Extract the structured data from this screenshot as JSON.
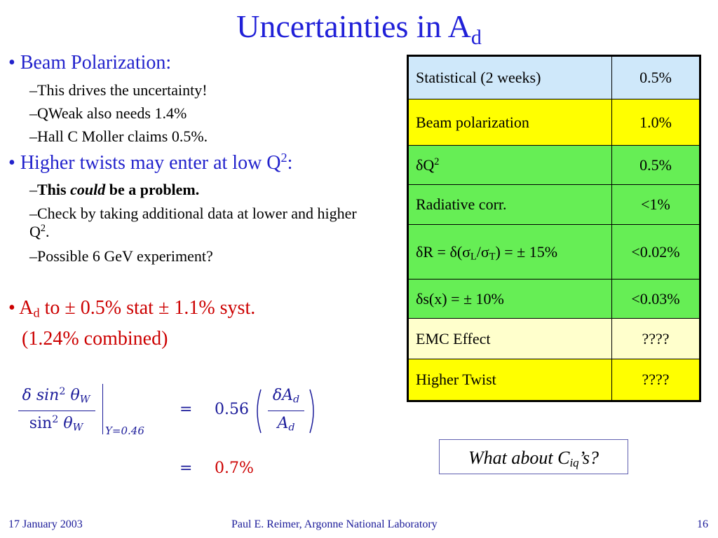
{
  "title": {
    "main": "Uncertainties in A",
    "sub": "d"
  },
  "bullets": {
    "beam": {
      "bullet": "•",
      "label": "Beam Polarization:",
      "items": [
        "–This drives the uncertainty!",
        "–QWeak also needs 1.4%",
        "–Hall C Moller claims 0.5%."
      ]
    },
    "twist": {
      "bullet": "•",
      "label": "Higher twists may enter at low Q",
      "label_sup": "2",
      "label_tail": ":",
      "problem": {
        "dash": "–",
        "pre": "This ",
        "italic": "could",
        "post": " be a problem."
      },
      "check": {
        "text": "–Check  by taking additional data at lower and higher Q",
        "sup": "2",
        "tail": "."
      },
      "possible": "–Possible 6 GeV experiment?"
    },
    "ad": {
      "bullet": "•",
      "a": "A",
      "a_sub": "d",
      "line1": " to ± 0.5% stat ± 1.1% syst.",
      "line2": "(1.24% combined)"
    }
  },
  "table": {
    "rows": [
      {
        "label": "Statistical (2 weeks)",
        "value": "0.5%",
        "color": "#cfe8fa"
      },
      {
        "label": "Beam polarization",
        "value": "1.0%",
        "color": "#ffff00"
      },
      {
        "label": "δQ",
        "label_sup": "2",
        "value": "0.5%",
        "color": "#66ee55"
      },
      {
        "label": "Radiative corr.",
        "value": "<1%",
        "color": "#66ee55"
      },
      {
        "label_html_parts": [
          "δR = δ(σ",
          "L",
          "/σ",
          "T",
          ") = ± 15%"
        ],
        "value": "<0.02%",
        "color": "#66ee55"
      },
      {
        "label": "δs(x) = ± 10%",
        "value": "<0.03%",
        "color": "#66ee55"
      },
      {
        "label": "EMC Effect",
        "value": "????",
        "color": "#ffffcc"
      },
      {
        "label": "Higher Twist",
        "value": "????",
        "color": "#ffff00"
      }
    ]
  },
  "formula": {
    "num": "δ sin",
    "num_sup": "2",
    "num_theta": "θ",
    "num_sub": "W",
    "den": "sin",
    "den_sup": "2",
    "den_theta": "θ",
    "den_sub": "W",
    "eval": "Y=0.46",
    "eq1": "=",
    "coef": "0.56",
    "frac2_num": "δA",
    "frac2_num_sub": "d",
    "frac2_den": "A",
    "frac2_den_sub": "d",
    "eq2": "=",
    "result": "0.7%"
  },
  "callout": {
    "pre": "What about C",
    "sub": "iq",
    "post": "’s?"
  },
  "footer": {
    "date": "17 January 2003",
    "author": "Paul E. Reimer, Argonne National Laboratory",
    "page": "16"
  }
}
